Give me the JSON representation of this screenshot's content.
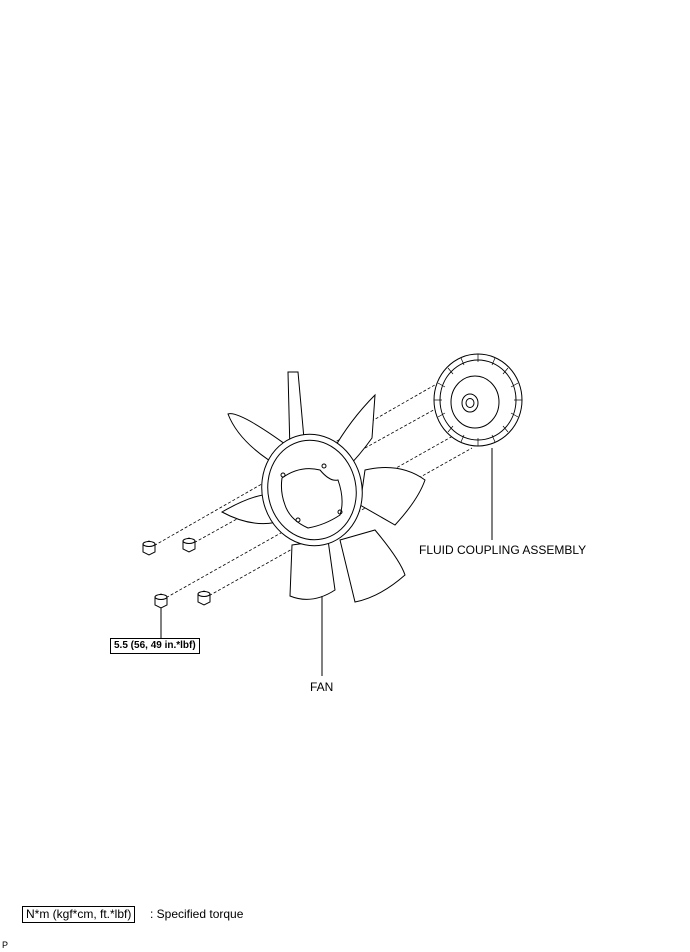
{
  "labels": {
    "fluid_coupling": "FLUID COUPLING ASSEMBLY",
    "fan": "FAN",
    "torque": "5.5 (56, 49 in.*lbf)"
  },
  "legend": {
    "box_text": "N*m (kgf*cm, ft.*lbf)",
    "text": ": Specified torque"
  },
  "code": "P"
}
